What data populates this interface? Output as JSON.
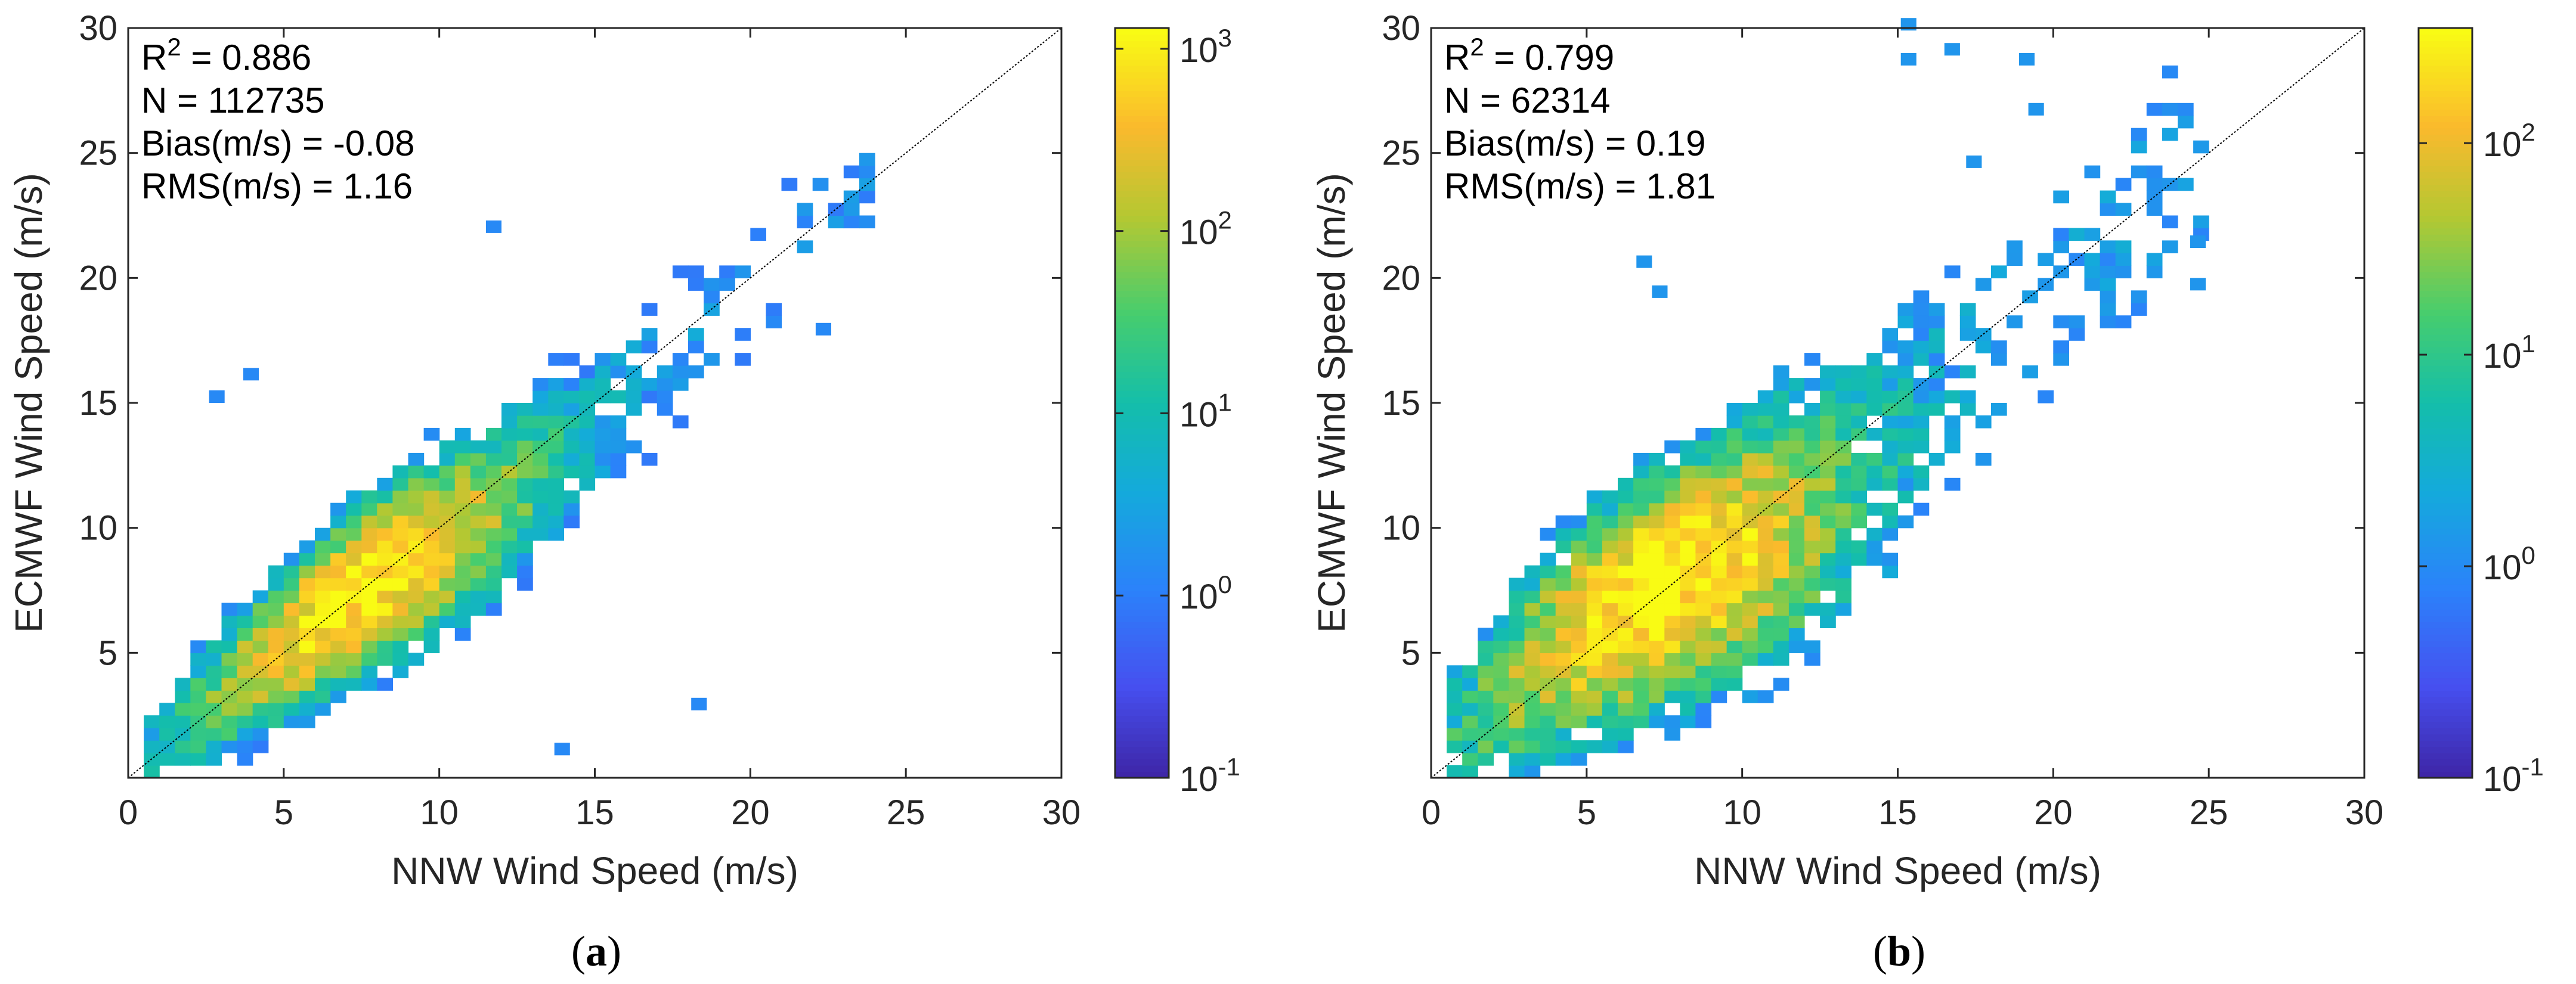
{
  "chart_data": [
    {
      "type": "heatmap",
      "panel_label_open": "(",
      "panel_label": "a",
      "panel_label_close": ")",
      "xlabel": "NNW Wind Speed (m/s)",
      "ylabel": "ECMWF Wind Speed (m/s)",
      "xlim": [
        0,
        30
      ],
      "ylim": [
        0,
        30
      ],
      "xticks": [
        0,
        5,
        10,
        15,
        20,
        25,
        30
      ],
      "yticks": [
        5,
        10,
        15,
        20,
        25,
        30
      ],
      "reference_line": "y = x",
      "stats": {
        "r2_prefix": "R",
        "r2_sup": "2",
        "r2_rest": " = 0.886",
        "n": "N = 112735",
        "bias": "Bias(m/s) = -0.08",
        "rms": "RMS(m/s) = 1.16"
      },
      "colorbar": {
        "scale": "log",
        "range": [
          0.1,
          1300
        ],
        "ticks": [
          {
            "value": 0.1,
            "base": "10",
            "exp": "-1"
          },
          {
            "value": 1,
            "base": "10",
            "exp": "0"
          },
          {
            "value": 10,
            "base": "10",
            "exp": "1"
          },
          {
            "value": 100,
            "base": "10",
            "exp": "2"
          },
          {
            "value": 1000,
            "base": "10",
            "exp": "3"
          }
        ]
      },
      "density": {
        "bias": -0.08,
        "rms": 1.16,
        "x_range": [
          0.5,
          24
        ],
        "y_range": [
          0.2,
          26.5
        ],
        "peak_count": 1000
      },
      "outliers": [
        [
          11.5,
          21.8
        ],
        [
          18.1,
          2.7
        ],
        [
          13.7,
          0.9
        ],
        [
          22.1,
          17.7
        ],
        [
          2.6,
          15.0
        ],
        [
          3.7,
          15.9
        ]
      ]
    },
    {
      "type": "heatmap",
      "panel_label_open": "(",
      "panel_label": "b",
      "panel_label_close": ")",
      "xlabel": "NNW Wind Speed (m/s)",
      "ylabel": "ECMWF Wind Speed (m/s)",
      "xlim": [
        0,
        30
      ],
      "ylim": [
        0,
        30
      ],
      "xticks": [
        0,
        5,
        10,
        15,
        20,
        25,
        30
      ],
      "yticks": [
        5,
        10,
        15,
        20,
        25,
        30
      ],
      "reference_line": "y = x",
      "stats": {
        "r2_prefix": "R",
        "r2_sup": "2",
        "r2_rest": " = 0.799",
        "n": "N = 62314",
        "bias": "Bias(m/s) = 0.19",
        "rms": "RMS(m/s) = 1.81"
      },
      "colorbar": {
        "scale": "log",
        "range": [
          0.1,
          350
        ],
        "ticks": [
          {
            "value": 0.1,
            "base": "10",
            "exp": "-1"
          },
          {
            "value": 1,
            "base": "10",
            "exp": "0"
          },
          {
            "value": 10,
            "base": "10",
            "exp": "1"
          },
          {
            "value": 100,
            "base": "10",
            "exp": "2"
          }
        ]
      },
      "density": {
        "bias": 0.19,
        "rms": 1.81,
        "x_range": [
          0.5,
          25
        ],
        "y_range": [
          0.2,
          30
        ],
        "peak_count": 350
      },
      "outliers": [
        [
          15.1,
          29.9
        ],
        [
          15.1,
          28.5
        ],
        [
          16.5,
          28.9
        ],
        [
          18.9,
          28.5
        ],
        [
          17.2,
          24.4
        ],
        [
          19.2,
          26.5
        ],
        [
          24.4,
          21.2
        ],
        [
          24.4,
          19.5
        ],
        [
          6.6,
          20.4
        ],
        [
          7.1,
          19.2
        ]
      ]
    }
  ]
}
